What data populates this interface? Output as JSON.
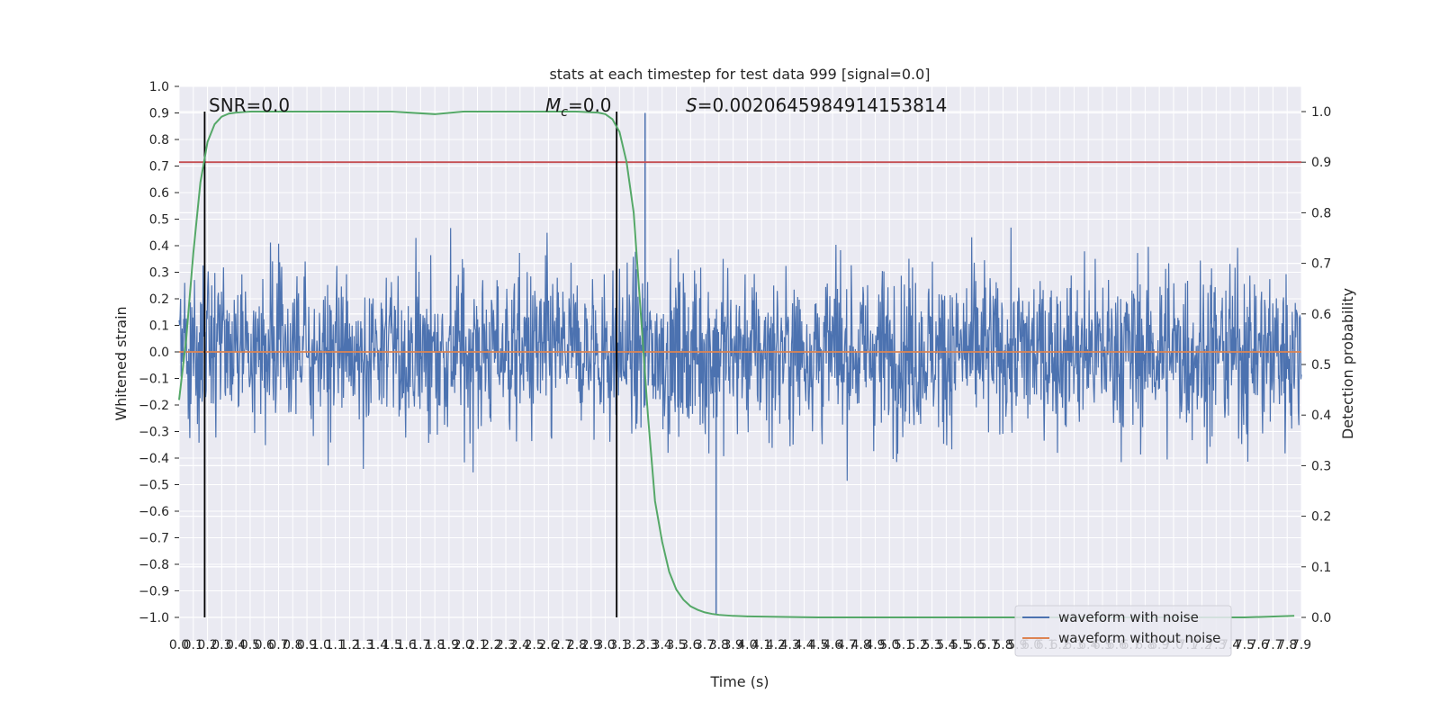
{
  "chart_data": {
    "type": "line",
    "title": "stats at each timestep for test data 999 [signal=0.0]",
    "xlabel": "Time (s)",
    "ylabel_left": "Whitened strain",
    "ylabel_right": "Detection probability",
    "xlim": [
      0.0,
      7.9
    ],
    "ylim_left": [
      -1.0,
      1.0
    ],
    "ylim_right": [
      0.0,
      1.0
    ],
    "grid": true,
    "legend_position": "lower-right",
    "x_tick_labels": [
      "0.0",
      "0.1",
      "0.2",
      "0.3",
      "0.4",
      "0.5",
      "0.6",
      "0.7",
      "0.8",
      "0.9",
      "1.0",
      "1.1",
      "1.2",
      "1.3",
      "1.4",
      "1.5",
      "1.6",
      "1.7",
      "1.8",
      "1.9",
      "2.0",
      "2.1",
      "2.2",
      "2.3",
      "2.4",
      "2.5",
      "2.6",
      "2.7",
      "2.8",
      "2.9",
      "3.0",
      "3.1",
      "3.2",
      "3.3",
      "3.4",
      "3.5",
      "3.6",
      "3.7",
      "3.8",
      "3.9",
      "4.0",
      "4.1",
      "4.2",
      "4.3",
      "4.4",
      "4.5",
      "4.6",
      "4.7",
      "4.8",
      "4.9",
      "5.0",
      "5.1",
      "5.2",
      "5.3",
      "5.4",
      "5.5",
      "5.6",
      "5.7",
      "5.8",
      "5.9",
      "6.0",
      "6.1",
      "6.2",
      "6.3",
      "6.4",
      "6.5",
      "6.6",
      "6.7",
      "6.8",
      "6.9",
      "7.0",
      "7.1",
      "7.2",
      "7.3",
      "7.4",
      "7.5",
      "7.6",
      "7.7",
      "7.8",
      "7.9"
    ],
    "y_left_tick_labels": [
      "−1.0",
      "−0.9",
      "−0.8",
      "−0.7",
      "−0.6",
      "−0.5",
      "−0.4",
      "−0.3",
      "−0.2",
      "−0.1",
      "0.0",
      "0.1",
      "0.2",
      "0.3",
      "0.4",
      "0.5",
      "0.6",
      "0.7",
      "0.8",
      "0.9",
      "1.0"
    ],
    "y_right_tick_labels": [
      "0.0",
      "0.1",
      "0.2",
      "0.3",
      "0.4",
      "0.5",
      "0.6",
      "0.7",
      "0.8",
      "0.9",
      "1.0"
    ],
    "series": [
      {
        "name": "waveform with noise",
        "color": "#4c72b0",
        "axis": "left",
        "style": "noise",
        "amplitude_typical": 0.4,
        "amplitude_extremes": [
          -0.99,
          0.9
        ]
      },
      {
        "name": "waveform without noise",
        "color": "#dd8452",
        "axis": "left",
        "x": [
          0.0,
          7.9
        ],
        "values": [
          0.0,
          0.0
        ]
      },
      {
        "name": "",
        "color": "#55a868",
        "axis": "right",
        "x": [
          0.0,
          0.05,
          0.1,
          0.15,
          0.2,
          0.25,
          0.3,
          0.35,
          0.4,
          0.45,
          0.5,
          0.6,
          0.8,
          1.0,
          1.5,
          1.8,
          2.0,
          2.5,
          2.8,
          2.95,
          3.0,
          3.05,
          3.1,
          3.15,
          3.2,
          3.25,
          3.3,
          3.35,
          3.4,
          3.45,
          3.5,
          3.55,
          3.6,
          3.65,
          3.7,
          3.75,
          3.8,
          3.9,
          4.0,
          4.5,
          5.0,
          5.5,
          6.0,
          7.0,
          7.5,
          7.85
        ],
        "values": [
          0.43,
          0.55,
          0.72,
          0.86,
          0.94,
          0.975,
          0.99,
          0.996,
          0.998,
          0.999,
          1.0,
          1.0,
          1.0,
          1.0,
          1.0,
          0.995,
          1.0,
          1.0,
          1.0,
          0.998,
          0.995,
          0.985,
          0.96,
          0.9,
          0.8,
          0.6,
          0.4,
          0.23,
          0.15,
          0.09,
          0.055,
          0.035,
          0.022,
          0.015,
          0.01,
          0.007,
          0.005,
          0.003,
          0.002,
          0.0,
          0.0,
          0.0,
          0.0,
          0.0,
          0.0,
          0.003
        ]
      }
    ],
    "hlines": [
      {
        "axis": "right",
        "value": 0.9,
        "color": "#c44e52"
      }
    ],
    "vlines": [
      {
        "x": 0.18,
        "color": "#000000"
      },
      {
        "x": 3.08,
        "color": "#000000"
      }
    ],
    "annotations": {
      "snr": "SNR=0.0",
      "mc_symbol": "M",
      "mc_sub": "c",
      "mc_value": "=0.0",
      "s_symbol": "S",
      "s_value": "=0.0020645984914153814"
    }
  }
}
